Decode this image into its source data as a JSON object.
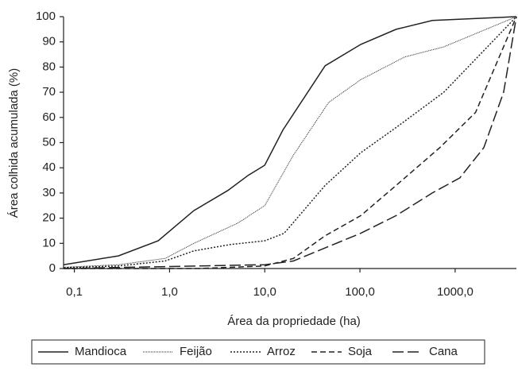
{
  "chart_data": {
    "type": "line",
    "x_label": "Área da propriedade (ha)",
    "y_label": "Área colhida acumulada (%)",
    "x_scale": "log",
    "xlim": [
      0.077,
      4400
    ],
    "xticks": [
      {
        "value": 0.1,
        "label": "0,1"
      },
      {
        "value": 1,
        "label": "1,0"
      },
      {
        "value": 10,
        "label": "10,0"
      },
      {
        "value": 100,
        "label": "100,0"
      },
      {
        "value": 1000,
        "label": "1000,0"
      }
    ],
    "ylim": [
      0,
      100
    ],
    "yticks": [
      0,
      10,
      20,
      30,
      40,
      50,
      60,
      70,
      80,
      90,
      100
    ],
    "grid": false,
    "legend": "bottom",
    "series": [
      {
        "name": "Mandioca",
        "color": "#222222",
        "dash": "none",
        "x": [
          0.077,
          0.29,
          0.76,
          1.8,
          4.1,
          6.7,
          10,
          15.5,
          43,
          102,
          240,
          575,
          4400
        ],
        "values": [
          1.5,
          5,
          11,
          23,
          31,
          37,
          41,
          55,
          80.5,
          89,
          95,
          98.5,
          100
        ]
      },
      {
        "name": "Feijão",
        "color": "#222222",
        "dash": "1 1",
        "x": [
          0.077,
          0.29,
          0.9,
          1.8,
          5.2,
          10,
          20,
          47,
          102,
          295,
          760,
          4400
        ],
        "values": [
          0.5,
          1.5,
          4,
          10,
          18,
          25,
          45,
          66,
          75,
          84,
          88,
          100
        ]
      },
      {
        "name": "Arroz",
        "color": "#222222",
        "dash": "2 2",
        "x": [
          0.077,
          0.29,
          0.9,
          1.8,
          4.3,
          10,
          16,
          43,
          102,
          240,
          760,
          4400
        ],
        "values": [
          0.3,
          1,
          3,
          7,
          9.5,
          11,
          14,
          33,
          46,
          56,
          70,
          100
        ]
      },
      {
        "name": "Soja",
        "color": "#222222",
        "dash": "7 4",
        "x": [
          0.077,
          2,
          10,
          20,
          43,
          102,
          240,
          690,
          1640,
          4400
        ],
        "values": [
          0,
          0,
          1,
          4,
          13,
          21,
          33,
          48,
          62,
          100
        ]
      },
      {
        "name": "Cana",
        "color": "#222222",
        "dash": "14 5",
        "x": [
          0.077,
          10,
          20,
          102,
          240,
          575,
          1120,
          2000,
          3230,
          4400
        ],
        "values": [
          0,
          1.5,
          3,
          14,
          21,
          30,
          36,
          48,
          70,
          100
        ]
      }
    ]
  }
}
